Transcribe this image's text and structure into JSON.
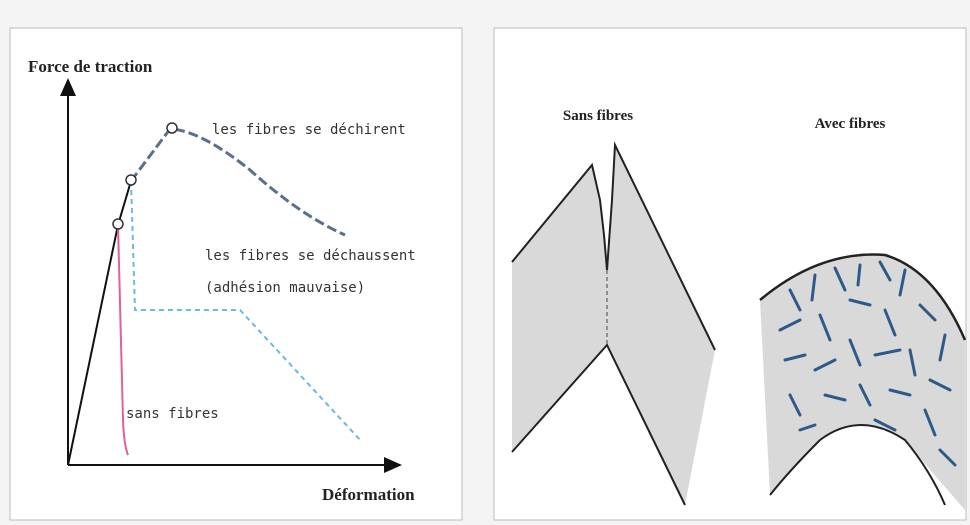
{
  "left_panel": {
    "y_axis_label": "Force de traction",
    "x_axis_label": "Déformation",
    "annotations": [
      "les fibres se déchirent",
      "les fibres se déchaussent",
      "(adhésion mauvaise)",
      "sans fibres"
    ]
  },
  "right_panel": {
    "labels": [
      "Sans fibres",
      "Avec fibres"
    ]
  }
}
